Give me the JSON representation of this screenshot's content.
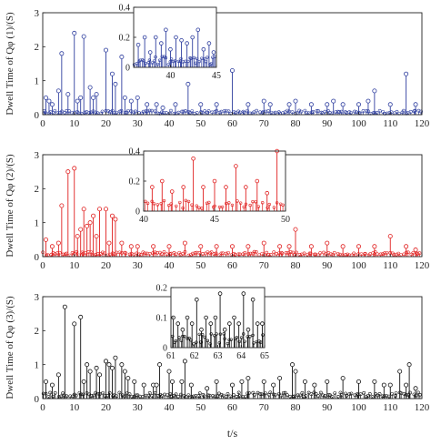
{
  "chart_data": [
    {
      "type": "stem",
      "ylabel": "Dwell Time of Qφ (1)/(S)",
      "xlim": [
        0,
        120
      ],
      "ylim": [
        0,
        3
      ],
      "xticks": [
        0,
        10,
        20,
        30,
        40,
        50,
        60,
        70,
        80,
        90,
        100,
        110,
        120
      ],
      "yticks": [
        0,
        1,
        2,
        3
      ],
      "color": "#2f3f9f",
      "main": {
        "peaks": [
          [
            1,
            0.5
          ],
          [
            2,
            0.4
          ],
          [
            3,
            0.3
          ],
          [
            5,
            0.7
          ],
          [
            6,
            1.8
          ],
          [
            8,
            0.6
          ],
          [
            10,
            2.4
          ],
          [
            11,
            0.4
          ],
          [
            12,
            0.5
          ],
          [
            13,
            2.3
          ],
          [
            15,
            0.8
          ],
          [
            16,
            0.5
          ],
          [
            17,
            0.6
          ],
          [
            20,
            1.9
          ],
          [
            22,
            1.2
          ],
          [
            23,
            0.9
          ],
          [
            25,
            1.7
          ],
          [
            26,
            0.5
          ],
          [
            28,
            0.4
          ],
          [
            30,
            0.5
          ],
          [
            33,
            0.3
          ],
          [
            36,
            0.3
          ],
          [
            38,
            0.2
          ],
          [
            42,
            0.3
          ],
          [
            46,
            0.9
          ],
          [
            50,
            0.3
          ],
          [
            55,
            0.3
          ],
          [
            60,
            1.3
          ],
          [
            65,
            0.3
          ],
          [
            70,
            0.4
          ],
          [
            72,
            0.3
          ],
          [
            78,
            0.3
          ],
          [
            80,
            0.4
          ],
          [
            85,
            0.3
          ],
          [
            90,
            0.3
          ],
          [
            92,
            0.4
          ],
          [
            95,
            0.3
          ],
          [
            100,
            0.3
          ],
          [
            103,
            0.4
          ],
          [
            105,
            0.7
          ],
          [
            110,
            0.3
          ],
          [
            115,
            1.2
          ],
          [
            118,
            0.3
          ]
        ],
        "baseline_level": 0.1
      },
      "inset": {
        "xlim": [
          36,
          45
        ],
        "ylim": [
          0,
          0.4
        ],
        "xticks": [
          40,
          45
        ],
        "yticks": [
          0,
          0.2,
          0.4
        ],
        "peaks": [
          [
            36.5,
            0.15
          ],
          [
            37.2,
            0.2
          ],
          [
            37.8,
            0.1
          ],
          [
            38.4,
            0.2
          ],
          [
            39.0,
            0.16
          ],
          [
            39.5,
            0.25
          ],
          [
            40.0,
            0.12
          ],
          [
            40.6,
            0.2
          ],
          [
            41.2,
            0.18
          ],
          [
            41.8,
            0.16
          ],
          [
            42.4,
            0.2
          ],
          [
            43.0,
            0.25
          ],
          [
            43.6,
            0.12
          ],
          [
            44.2,
            0.16
          ],
          [
            44.7,
            0.1
          ]
        ],
        "baseline_level": 0.06
      }
    },
    {
      "type": "stem",
      "ylabel": "Dwell Time of Qφ (2)/(S)",
      "xlim": [
        0,
        120
      ],
      "ylim": [
        0,
        3
      ],
      "xticks": [
        0,
        10,
        20,
        30,
        40,
        50,
        60,
        70,
        80,
        90,
        100,
        110,
        120
      ],
      "yticks": [
        0,
        1,
        2,
        3
      ],
      "color": "#e02020",
      "main": {
        "peaks": [
          [
            1,
            0.5
          ],
          [
            3,
            0.3
          ],
          [
            5,
            0.4
          ],
          [
            6,
            1.5
          ],
          [
            8,
            2.5
          ],
          [
            10,
            2.6
          ],
          [
            11,
            0.6
          ],
          [
            12,
            0.8
          ],
          [
            13,
            1.4
          ],
          [
            14,
            0.9
          ],
          [
            15,
            1.0
          ],
          [
            16,
            1.2
          ],
          [
            17,
            0.6
          ],
          [
            18,
            1.4
          ],
          [
            20,
            1.4
          ],
          [
            21,
            0.4
          ],
          [
            22,
            1.2
          ],
          [
            23,
            1.1
          ],
          [
            25,
            0.4
          ],
          [
            28,
            0.3
          ],
          [
            30,
            0.3
          ],
          [
            35,
            0.3
          ],
          [
            40,
            0.3
          ],
          [
            45,
            0.4
          ],
          [
            50,
            0.3
          ],
          [
            55,
            0.3
          ],
          [
            60,
            0.3
          ],
          [
            65,
            0.3
          ],
          [
            70,
            0.4
          ],
          [
            75,
            0.3
          ],
          [
            78,
            0.3
          ],
          [
            80,
            0.8
          ],
          [
            85,
            0.3
          ],
          [
            90,
            0.4
          ],
          [
            95,
            0.3
          ],
          [
            100,
            0.3
          ],
          [
            105,
            0.3
          ],
          [
            110,
            0.6
          ],
          [
            115,
            0.3
          ],
          [
            118,
            0.2
          ]
        ],
        "baseline_level": 0.12
      },
      "inset": {
        "xlim": [
          40,
          50
        ],
        "ylim": [
          0,
          0.4
        ],
        "xticks": [
          40,
          45,
          50
        ],
        "yticks": [
          0,
          0.2,
          0.4
        ],
        "peaks": [
          [
            40.6,
            0.16
          ],
          [
            41.3,
            0.2
          ],
          [
            42.0,
            0.13
          ],
          [
            42.8,
            0.16
          ],
          [
            43.5,
            0.35
          ],
          [
            44.2,
            0.16
          ],
          [
            45.0,
            0.2
          ],
          [
            45.8,
            0.16
          ],
          [
            46.5,
            0.3
          ],
          [
            47.2,
            0.16
          ],
          [
            48.0,
            0.2
          ],
          [
            48.7,
            0.12
          ],
          [
            49.4,
            0.4
          ]
        ],
        "baseline_level": 0.06
      }
    },
    {
      "type": "stem",
      "ylabel": "Dwell Time of Qφ (3)/(S)",
      "xlabel": "t/s",
      "xlim": [
        0,
        120
      ],
      "ylim": [
        0,
        3
      ],
      "xticks": [
        0,
        10,
        20,
        30,
        40,
        50,
        60,
        70,
        80,
        90,
        100,
        110,
        120
      ],
      "yticks": [
        0,
        1,
        2,
        3
      ],
      "color": "#111111",
      "main": {
        "peaks": [
          [
            1,
            0.5
          ],
          [
            3,
            0.4
          ],
          [
            5,
            0.7
          ],
          [
            7,
            2.7
          ],
          [
            10,
            2.2
          ],
          [
            12,
            2.4
          ],
          [
            13,
            0.5
          ],
          [
            14,
            1.0
          ],
          [
            15,
            0.8
          ],
          [
            17,
            0.9
          ],
          [
            18,
            0.7
          ],
          [
            20,
            1.1
          ],
          [
            21,
            1.0
          ],
          [
            22,
            0.9
          ],
          [
            23,
            1.2
          ],
          [
            25,
            1.0
          ],
          [
            26,
            0.8
          ],
          [
            27,
            0.6
          ],
          [
            29,
            0.5
          ],
          [
            32,
            0.4
          ],
          [
            35,
            0.4
          ],
          [
            36,
            0.4
          ],
          [
            37,
            1.0
          ],
          [
            40,
            0.8
          ],
          [
            41,
            0.5
          ],
          [
            44,
            0.5
          ],
          [
            45,
            1.1
          ],
          [
            47,
            0.4
          ],
          [
            52,
            0.3
          ],
          [
            55,
            0.5
          ],
          [
            60,
            0.4
          ],
          [
            63,
            0.5
          ],
          [
            65,
            0.6
          ],
          [
            70,
            0.5
          ],
          [
            73,
            0.4
          ],
          [
            75,
            0.6
          ],
          [
            79,
            1.0
          ],
          [
            80,
            0.8
          ],
          [
            83,
            0.5
          ],
          [
            86,
            0.4
          ],
          [
            90,
            0.5
          ],
          [
            95,
            0.6
          ],
          [
            100,
            0.5
          ],
          [
            105,
            0.5
          ],
          [
            108,
            0.4
          ],
          [
            110,
            0.4
          ],
          [
            113,
            0.8
          ],
          [
            115,
            0.4
          ],
          [
            116,
            1.0
          ],
          [
            118,
            0.3
          ]
        ],
        "baseline_level": 0.15
      },
      "inset": {
        "xlim": [
          61,
          65
        ],
        "ylim": [
          0,
          0.2
        ],
        "xticks": [
          61,
          62,
          63,
          64,
          65
        ],
        "yticks": [
          0,
          0.1,
          0.2
        ],
        "peaks": [
          [
            61.1,
            0.1
          ],
          [
            61.3,
            0.08
          ],
          [
            61.5,
            0.06
          ],
          [
            61.7,
            0.1
          ],
          [
            61.9,
            0.08
          ],
          [
            62.1,
            0.16
          ],
          [
            62.3,
            0.06
          ],
          [
            62.5,
            0.1
          ],
          [
            62.7,
            0.08
          ],
          [
            62.9,
            0.1
          ],
          [
            63.1,
            0.18
          ],
          [
            63.3,
            0.06
          ],
          [
            63.5,
            0.08
          ],
          [
            63.7,
            0.1
          ],
          [
            63.9,
            0.08
          ],
          [
            64.1,
            0.18
          ],
          [
            64.3,
            0.06
          ],
          [
            64.5,
            0.16
          ],
          [
            64.7,
            0.08
          ],
          [
            64.9,
            0.08
          ]
        ],
        "baseline_level": 0.04
      }
    }
  ]
}
